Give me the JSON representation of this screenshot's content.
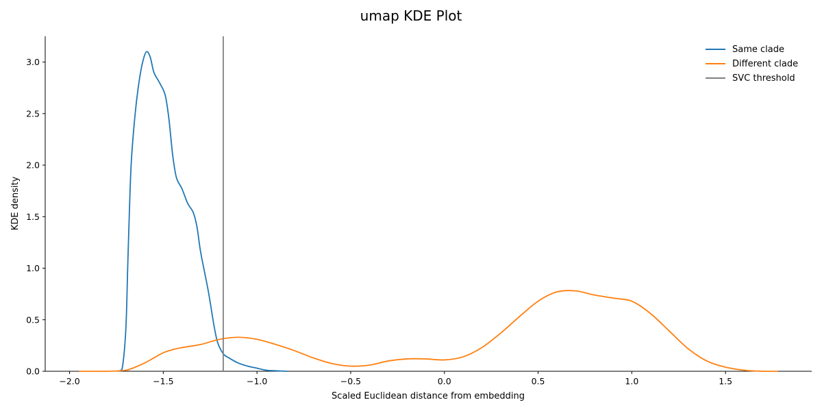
{
  "chart_data": {
    "type": "line",
    "title": "umap KDE Plot",
    "xlabel": "Scaled Euclidean distance from embedding",
    "ylabel": "KDE density",
    "xlim": [
      -2.13,
      1.96
    ],
    "ylim": [
      0,
      3.25
    ],
    "xticks": [
      -2.0,
      -1.5,
      -1.0,
      -0.5,
      0.0,
      0.5,
      1.0,
      1.5
    ],
    "xtick_labels": [
      "−2.0",
      "−1.5",
      "−1.0",
      "−0.5",
      "0.0",
      "0.5",
      "1.0",
      "1.5"
    ],
    "yticks": [
      0.0,
      0.5,
      1.0,
      1.5,
      2.0,
      2.5,
      3.0
    ],
    "ytick_labels": [
      "0.0",
      "0.5",
      "1.0",
      "1.5",
      "2.0",
      "2.5",
      "3.0"
    ],
    "grid": false,
    "legend_position": "top-right",
    "series": [
      {
        "name": "Same clade",
        "color": "#1f77b4",
        "points": [
          [
            -1.74,
            0.0
          ],
          [
            -1.72,
            0.02
          ],
          [
            -1.7,
            0.4
          ],
          [
            -1.69,
            1.0
          ],
          [
            -1.68,
            1.6
          ],
          [
            -1.67,
            2.05
          ],
          [
            -1.65,
            2.5
          ],
          [
            -1.63,
            2.8
          ],
          [
            -1.61,
            3.0
          ],
          [
            -1.59,
            3.1
          ],
          [
            -1.57,
            3.05
          ],
          [
            -1.55,
            2.9
          ],
          [
            -1.52,
            2.8
          ],
          [
            -1.49,
            2.68
          ],
          [
            -1.47,
            2.45
          ],
          [
            -1.45,
            2.1
          ],
          [
            -1.43,
            1.88
          ],
          [
            -1.4,
            1.77
          ],
          [
            -1.37,
            1.63
          ],
          [
            -1.34,
            1.54
          ],
          [
            -1.32,
            1.4
          ],
          [
            -1.3,
            1.15
          ],
          [
            -1.26,
            0.78
          ],
          [
            -1.23,
            0.45
          ],
          [
            -1.21,
            0.28
          ],
          [
            -1.18,
            0.17
          ],
          [
            -1.15,
            0.13
          ],
          [
            -1.1,
            0.08
          ],
          [
            -1.05,
            0.05
          ],
          [
            -1.0,
            0.03
          ],
          [
            -0.95,
            0.01
          ],
          [
            -0.9,
            0.005
          ],
          [
            -0.84,
            0.0
          ]
        ]
      },
      {
        "name": "Different clade",
        "color": "#ff7f0e",
        "points": [
          [
            -1.95,
            0.0
          ],
          [
            -1.8,
            0.0
          ],
          [
            -1.7,
            0.01
          ],
          [
            -1.65,
            0.04
          ],
          [
            -1.6,
            0.08
          ],
          [
            -1.55,
            0.13
          ],
          [
            -1.5,
            0.18
          ],
          [
            -1.45,
            0.21
          ],
          [
            -1.4,
            0.23
          ],
          [
            -1.3,
            0.26
          ],
          [
            -1.2,
            0.31
          ],
          [
            -1.1,
            0.33
          ],
          [
            -1.0,
            0.31
          ],
          [
            -0.9,
            0.26
          ],
          [
            -0.8,
            0.2
          ],
          [
            -0.7,
            0.13
          ],
          [
            -0.6,
            0.075
          ],
          [
            -0.5,
            0.05
          ],
          [
            -0.4,
            0.06
          ],
          [
            -0.3,
            0.1
          ],
          [
            -0.2,
            0.12
          ],
          [
            -0.1,
            0.12
          ],
          [
            0.0,
            0.11
          ],
          [
            0.1,
            0.14
          ],
          [
            0.2,
            0.23
          ],
          [
            0.3,
            0.37
          ],
          [
            0.4,
            0.53
          ],
          [
            0.5,
            0.68
          ],
          [
            0.6,
            0.77
          ],
          [
            0.7,
            0.78
          ],
          [
            0.8,
            0.74
          ],
          [
            0.9,
            0.71
          ],
          [
            1.0,
            0.68
          ],
          [
            1.1,
            0.56
          ],
          [
            1.2,
            0.39
          ],
          [
            1.3,
            0.22
          ],
          [
            1.4,
            0.1
          ],
          [
            1.5,
            0.04
          ],
          [
            1.6,
            0.01
          ],
          [
            1.7,
            0.0
          ],
          [
            1.78,
            0.0
          ]
        ]
      }
    ],
    "threshold": {
      "name": "SVC threshold",
      "x": -1.18,
      "color": "#808080"
    }
  }
}
